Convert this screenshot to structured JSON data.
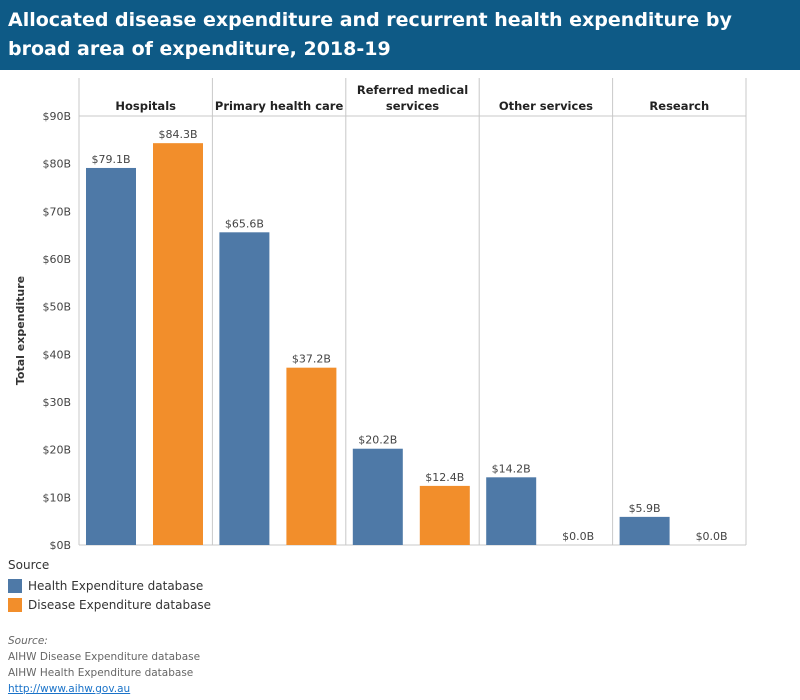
{
  "title": "Allocated disease expenditure and recurrent health expenditure by broad area of expenditure, 2018-19",
  "legend": {
    "title": "Source",
    "items": [
      {
        "label": "Health Expenditure database",
        "color": "#4e79a7"
      },
      {
        "label": "Disease Expenditure database",
        "color": "#f28e2b"
      }
    ]
  },
  "source": {
    "label": "Source:",
    "lines": [
      "AIHW Disease Expenditure database",
      "AIHW Health Expenditure database"
    ],
    "link": "http://www.aihw.gov.au"
  },
  "chart_data": {
    "type": "bar",
    "ylabel": "Total expenditure",
    "ylim": [
      0,
      90
    ],
    "yticks": [
      "$0B",
      "$10B",
      "$20B",
      "$30B",
      "$40B",
      "$50B",
      "$60B",
      "$70B",
      "$80B",
      "$90B"
    ],
    "categories": [
      "Hospitals",
      "Primary health care",
      "Referred medical services",
      "Other services",
      "Research"
    ],
    "series": [
      {
        "name": "Health Expenditure database",
        "color": "#4e79a7",
        "values": [
          79.1,
          65.6,
          20.2,
          14.2,
          5.9
        ],
        "labels": [
          "$79.1B",
          "$65.6B",
          "$20.2B",
          "$14.2B",
          "$5.9B"
        ]
      },
      {
        "name": "Disease Expenditure database",
        "color": "#f28e2b",
        "values": [
          84.3,
          37.2,
          12.4,
          0.0,
          0.0
        ],
        "labels": [
          "$84.3B",
          "$37.2B",
          "$12.4B",
          "$0.0B",
          "$0.0B"
        ]
      }
    ]
  }
}
